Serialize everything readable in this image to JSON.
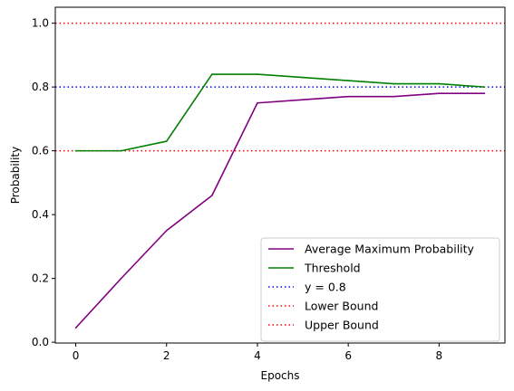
{
  "chart_data": {
    "type": "line",
    "title": "",
    "xlabel": "Epochs",
    "ylabel": "Probability",
    "xlim": [
      -0.45,
      9.45
    ],
    "ylim": [
      -0.0025,
      1.05
    ],
    "xticks": [
      0,
      2,
      4,
      6,
      8
    ],
    "xtick_labels": [
      "0",
      "2",
      "4",
      "6",
      "8"
    ],
    "yticks": [
      0.0,
      0.2,
      0.4,
      0.6,
      0.8,
      1.0
    ],
    "ytick_labels": [
      "0.0",
      "0.2",
      "0.4",
      "0.6",
      "0.8",
      "1.0"
    ],
    "grid": false,
    "legend_position": "lower right",
    "x": [
      0,
      1,
      2,
      3,
      4,
      5,
      6,
      7,
      8,
      9
    ],
    "series": [
      {
        "name": "Average Maximum Probability",
        "color": "#800080",
        "style": "solid",
        "values": [
          0.045,
          0.2,
          0.35,
          0.46,
          0.75,
          0.76,
          0.77,
          0.77,
          0.78,
          0.78
        ]
      },
      {
        "name": "Threshold",
        "color": "#008000",
        "style": "solid",
        "values": [
          0.6,
          0.6,
          0.63,
          0.84,
          0.84,
          0.83,
          0.82,
          0.81,
          0.81,
          0.8
        ]
      }
    ],
    "hlines": [
      {
        "name": "y = 0.8",
        "y": 0.8,
        "color": "#0000ff",
        "style": "dotted"
      },
      {
        "name": "Lower Bound",
        "y": 0.6,
        "color": "#ff0000",
        "style": "dotted"
      },
      {
        "name": "Upper Bound",
        "y": 1.0,
        "color": "#ff0000",
        "style": "dotted"
      }
    ]
  }
}
